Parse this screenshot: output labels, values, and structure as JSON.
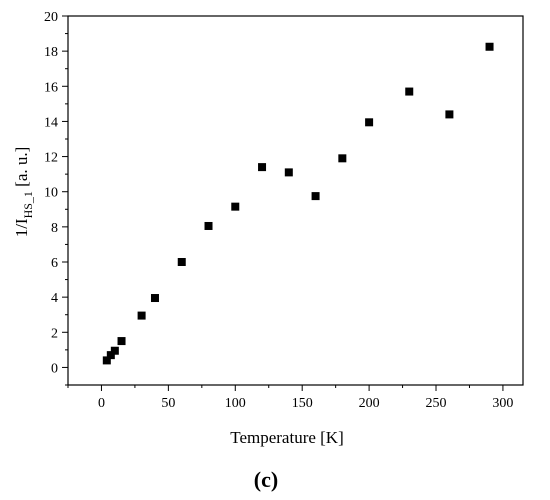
{
  "chart_data": {
    "type": "scatter",
    "title": "",
    "xlabel": "Temperature [K]",
    "ylabel": {
      "main": "1/I",
      "sub": "HS_1",
      "units": " [a. u.]"
    },
    "panel_label": "(c)",
    "xlim": [
      -25,
      315
    ],
    "ylim": [
      -1,
      20
    ],
    "xticks": [
      0,
      50,
      100,
      150,
      200,
      250,
      300
    ],
    "yticks": [
      0,
      2,
      4,
      6,
      8,
      10,
      12,
      14,
      16,
      18,
      20
    ],
    "marker": "square",
    "marker_color": "#000000",
    "grid": false,
    "series": [
      {
        "points": [
          [
            4,
            0.4
          ],
          [
            7,
            0.7
          ],
          [
            10,
            0.95
          ],
          [
            15,
            1.5
          ],
          [
            30,
            2.95
          ],
          [
            40,
            3.95
          ],
          [
            60,
            6.0
          ],
          [
            80,
            8.05
          ],
          [
            100,
            9.15
          ],
          [
            120,
            11.4
          ],
          [
            140,
            11.1
          ],
          [
            160,
            9.75
          ],
          [
            180,
            11.9
          ],
          [
            200,
            13.95
          ],
          [
            230,
            15.7
          ],
          [
            260,
            14.4
          ],
          [
            290,
            18.25
          ]
        ]
      }
    ]
  }
}
